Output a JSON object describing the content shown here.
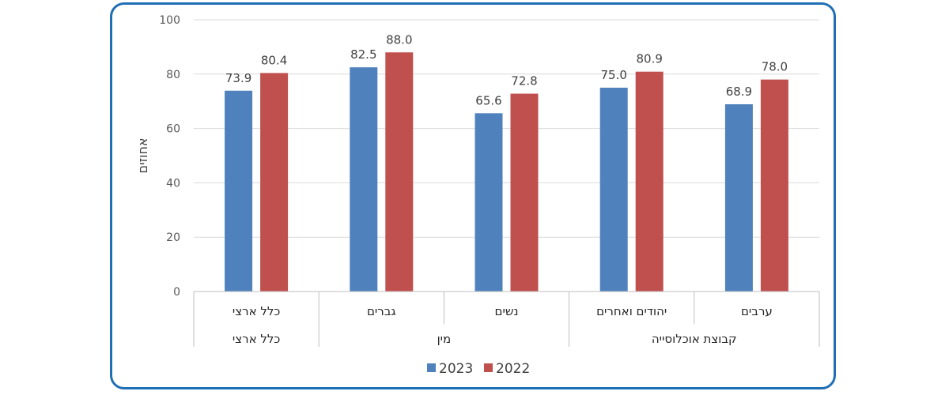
{
  "chart_data": {
    "type": "bar",
    "ylabel": "אחוזים",
    "ylim": [
      0,
      100
    ],
    "yticks": [
      0,
      20,
      40,
      60,
      80,
      100
    ],
    "grid": true,
    "legend_position": "bottom",
    "categories": [
      "ערבים",
      "יהודים ואחרים",
      "נשים",
      "גברים",
      "כלל ארצי"
    ],
    "groups": [
      {
        "label": "קבוצת אוכלוסייה",
        "span": 2
      },
      {
        "label": "מין",
        "span": 2
      },
      {
        "label": "כלל ארצי",
        "span": 1
      }
    ],
    "series": [
      {
        "name": "2023",
        "color": "#4f81bd",
        "values": [
          68.9,
          75.0,
          65.6,
          82.5,
          73.9
        ]
      },
      {
        "name": "2022",
        "color": "#c0504d",
        "values": [
          78.0,
          80.9,
          72.8,
          88.0,
          80.4
        ]
      }
    ]
  }
}
